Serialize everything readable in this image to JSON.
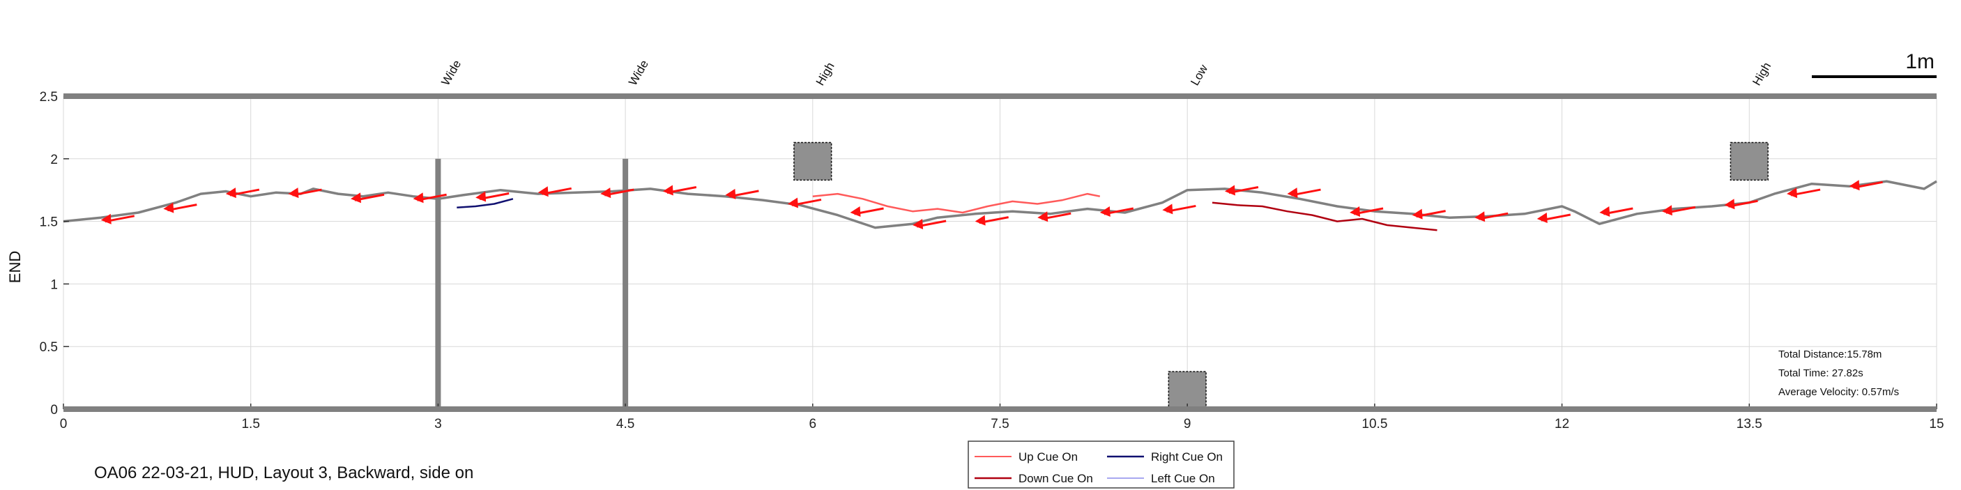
{
  "chart_data": {
    "type": "line",
    "caption": "OA06 22-03-21, HUD, Layout 3, Backward, side on",
    "ylabel": "END",
    "xlim": [
      0,
      15
    ],
    "ylim": [
      0,
      2.5
    ],
    "x_ticks": [
      0,
      1.5,
      3,
      4.5,
      6,
      7.5,
      9,
      10.5,
      12,
      13.5,
      15
    ],
    "x_tick_labels": [
      "0",
      "1.5",
      "3",
      "4.5",
      "6",
      "7.5",
      "9",
      "10.5",
      "12",
      "13.5",
      "15"
    ],
    "y_ticks": [
      0,
      0.5,
      1,
      1.5,
      2,
      2.5
    ],
    "y_tick_labels": [
      "0",
      "0.5",
      "1",
      "1.5",
      "2",
      "2.5"
    ],
    "grid": true,
    "scale_bar": {
      "label": "1m",
      "length": 1
    },
    "obstacles": [
      {
        "label": "Wide",
        "x": 3,
        "type": "pole",
        "y_range": [
          0,
          2
        ]
      },
      {
        "label": "Wide",
        "x": 4.5,
        "type": "pole",
        "y_range": [
          0,
          2
        ]
      },
      {
        "label": "High",
        "x": 6,
        "type": "box",
        "y_range": [
          1.83,
          2.13
        ],
        "width": 0.3
      },
      {
        "label": "Low",
        "x": 9,
        "type": "box",
        "y_range": [
          0,
          0.3
        ],
        "width": 0.3
      },
      {
        "label": "High",
        "x": 13.5,
        "type": "box",
        "y_range": [
          1.83,
          2.13
        ],
        "width": 0.3
      }
    ],
    "stats": [
      "Total Distance:15.78m",
      "Total Time: 27.82s",
      "Average Velocity: 0.57m/s"
    ],
    "legend": {
      "placement": "bottom-center",
      "entries": [
        {
          "label": "Up Cue On",
          "color": "#ff5a5a"
        },
        {
          "label": "Right Cue On",
          "color": "#101070"
        },
        {
          "label": "Down Cue On",
          "color": "#b00010"
        },
        {
          "label": "Left Cue On",
          "color": "#a8a8f0"
        }
      ]
    },
    "series": [
      {
        "name": "path",
        "color": "#808080",
        "x": [
          0,
          0.3,
          0.6,
          0.9,
          1.1,
          1.3,
          1.5,
          1.7,
          1.9,
          2.0,
          2.2,
          2.4,
          2.6,
          2.8,
          3.0,
          3.2,
          3.5,
          3.8,
          4.1,
          4.4,
          4.7,
          5.0,
          5.3,
          5.6,
          5.9,
          6.2,
          6.5,
          6.8,
          7.0,
          7.3,
          7.6,
          7.9,
          8.2,
          8.5,
          8.8,
          9.0,
          9.3,
          9.6,
          9.9,
          10.2,
          10.5,
          10.8,
          11.1,
          11.4,
          11.7,
          12.0,
          12.1,
          12.3,
          12.6,
          12.9,
          13.2,
          13.5,
          13.7,
          14.0,
          14.3,
          14.6,
          14.9,
          15.0
        ],
        "y": [
          1.5,
          1.53,
          1.57,
          1.65,
          1.72,
          1.74,
          1.7,
          1.73,
          1.72,
          1.76,
          1.72,
          1.7,
          1.73,
          1.7,
          1.68,
          1.71,
          1.75,
          1.72,
          1.73,
          1.74,
          1.76,
          1.72,
          1.7,
          1.67,
          1.63,
          1.55,
          1.45,
          1.48,
          1.53,
          1.56,
          1.58,
          1.56,
          1.6,
          1.57,
          1.65,
          1.75,
          1.76,
          1.73,
          1.68,
          1.62,
          1.58,
          1.56,
          1.53,
          1.54,
          1.56,
          1.62,
          1.58,
          1.48,
          1.56,
          1.6,
          1.62,
          1.65,
          1.72,
          1.8,
          1.78,
          1.82,
          1.76,
          1.82
        ]
      },
      {
        "name": "Up Cue On",
        "color": "#ff5a5a",
        "x": [
          6.0,
          6.2,
          6.4,
          6.6,
          6.8,
          7.0,
          7.2,
          7.4,
          7.6,
          7.8,
          8.0,
          8.2,
          8.3
        ],
        "y": [
          1.7,
          1.72,
          1.68,
          1.62,
          1.58,
          1.6,
          1.57,
          1.62,
          1.66,
          1.64,
          1.67,
          1.72,
          1.7
        ]
      },
      {
        "name": "Down Cue On",
        "color": "#b00010",
        "x": [
          9.2,
          9.4,
          9.6,
          9.8,
          10.0,
          10.2,
          10.4,
          10.6,
          10.8,
          11.0
        ],
        "y": [
          1.65,
          1.63,
          1.62,
          1.58,
          1.55,
          1.5,
          1.52,
          1.47,
          1.45,
          1.43
        ]
      },
      {
        "name": "Right Cue On",
        "color": "#101070",
        "x": [
          3.15,
          3.3,
          3.45,
          3.6
        ],
        "y": [
          1.61,
          1.62,
          1.64,
          1.68
        ]
      }
    ],
    "arrows": {
      "color": "#ff1010",
      "points": [
        [
          0.3,
          1.51
        ],
        [
          0.8,
          1.6
        ],
        [
          1.3,
          1.72
        ],
        [
          1.8,
          1.72
        ],
        [
          2.3,
          1.68
        ],
        [
          2.8,
          1.68
        ],
        [
          3.3,
          1.69
        ],
        [
          3.8,
          1.73
        ],
        [
          4.3,
          1.72
        ],
        [
          4.8,
          1.74
        ],
        [
          5.3,
          1.71
        ],
        [
          5.8,
          1.64
        ],
        [
          6.3,
          1.57
        ],
        [
          6.8,
          1.47
        ],
        [
          7.3,
          1.5
        ],
        [
          7.8,
          1.53
        ],
        [
          8.3,
          1.57
        ],
        [
          8.8,
          1.59
        ],
        [
          9.3,
          1.74
        ],
        [
          9.8,
          1.72
        ],
        [
          10.3,
          1.57
        ],
        [
          10.8,
          1.55
        ],
        [
          11.3,
          1.53
        ],
        [
          11.8,
          1.52
        ],
        [
          12.3,
          1.57
        ],
        [
          12.8,
          1.58
        ],
        [
          13.3,
          1.63
        ],
        [
          13.8,
          1.72
        ],
        [
          14.3,
          1.78
        ]
      ]
    }
  }
}
